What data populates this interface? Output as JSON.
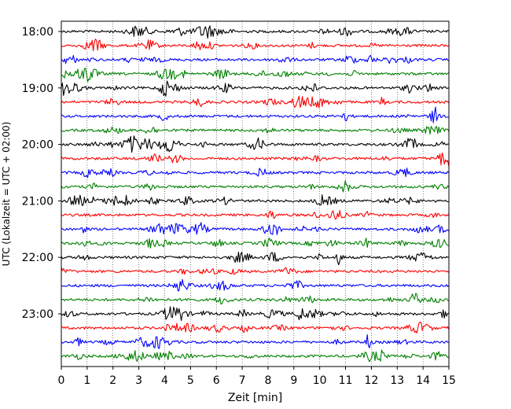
{
  "chart_data": {
    "type": "line",
    "title": "",
    "xlabel": "Zeit  [min]",
    "ylabel": "UTC (Lokalzeit = UTC + 02:00)",
    "xlim": [
      0,
      15
    ],
    "x_ticks": [
      0,
      1,
      2,
      3,
      4,
      5,
      6,
      7,
      8,
      9,
      10,
      11,
      12,
      13,
      14,
      15
    ],
    "y_tick_labels": [
      "18:00",
      "19:00",
      "20:00",
      "21:00",
      "22:00",
      "23:00"
    ],
    "trace_interval_minutes": 15,
    "grid": "vertical dotted",
    "trace_colors": [
      "#000000",
      "#ff0000",
      "#0000ff",
      "#008000"
    ],
    "series": [
      {
        "start": "18:00",
        "color": "#000000"
      },
      {
        "start": "18:15",
        "color": "#ff0000"
      },
      {
        "start": "18:30",
        "color": "#0000ff"
      },
      {
        "start": "18:45",
        "color": "#008000"
      },
      {
        "start": "19:00",
        "color": "#000000"
      },
      {
        "start": "19:15",
        "color": "#ff0000"
      },
      {
        "start": "19:30",
        "color": "#0000ff"
      },
      {
        "start": "19:45",
        "color": "#008000"
      },
      {
        "start": "20:00",
        "color": "#000000"
      },
      {
        "start": "20:15",
        "color": "#ff0000"
      },
      {
        "start": "20:30",
        "color": "#0000ff"
      },
      {
        "start": "20:45",
        "color": "#008000"
      },
      {
        "start": "21:00",
        "color": "#000000"
      },
      {
        "start": "21:15",
        "color": "#ff0000"
      },
      {
        "start": "21:30",
        "color": "#0000ff"
      },
      {
        "start": "21:45",
        "color": "#008000"
      },
      {
        "start": "22:00",
        "color": "#000000"
      },
      {
        "start": "22:15",
        "color": "#ff0000"
      },
      {
        "start": "22:30",
        "color": "#0000ff"
      },
      {
        "start": "22:45",
        "color": "#008000"
      },
      {
        "start": "23:00",
        "color": "#000000"
      },
      {
        "start": "23:15",
        "color": "#ff0000"
      },
      {
        "start": "23:30",
        "color": "#0000ff"
      },
      {
        "start": "23:45",
        "color": "#008000"
      }
    ]
  }
}
